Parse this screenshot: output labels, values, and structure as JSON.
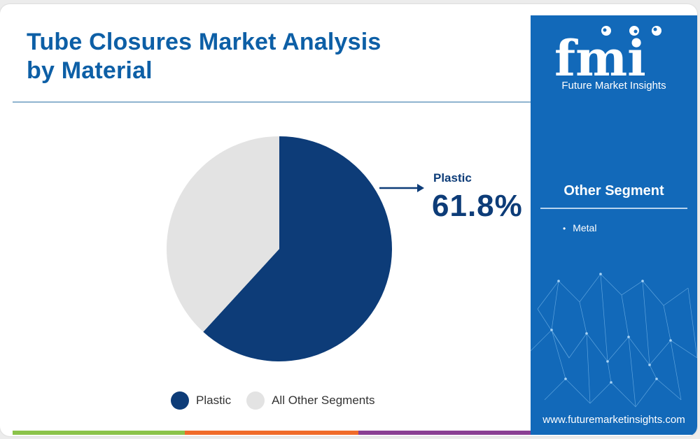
{
  "title": "Tube Closures Market Analysis by Material",
  "callout": {
    "label": "Plastic",
    "value": "61.8%"
  },
  "chart_data": {
    "type": "pie",
    "title": "Tube Closures Market Analysis by Material",
    "slices": [
      {
        "name": "Plastic",
        "value": 61.8,
        "color": "#0d3c78"
      },
      {
        "name": "All Other Segments",
        "value": 38.2,
        "color": "#e3e3e3"
      }
    ],
    "legend_position": "bottom-center"
  },
  "legend": [
    {
      "label": "Plastic",
      "color": "#0d3c78"
    },
    {
      "label": "All Other Segments",
      "color": "#e3e3e3"
    }
  ],
  "sidebar": {
    "logo_text": "fmi",
    "logo_subtitle": "Future Market Insights",
    "segment_title": "Other Segment",
    "segment_items": [
      "Metal"
    ],
    "website": "www.futuremarketinsights.com"
  },
  "colors": {
    "title": "#0d5fa6",
    "primary": "#0d3c78",
    "other": "#e3e3e3",
    "sidebar": "#1269b9",
    "bottom_bar": [
      "#8bc34a",
      "#f06b2a",
      "#8a3f93"
    ]
  }
}
